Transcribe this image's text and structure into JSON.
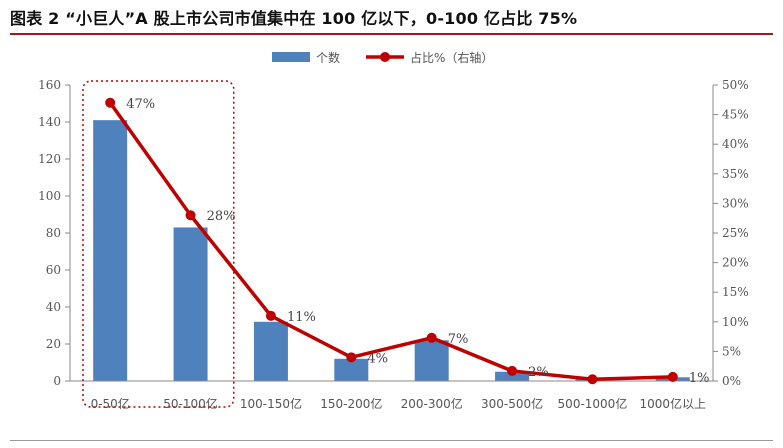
{
  "title": "图表 2 “小巨人”A 股上市公司市值集中在 100 亿以下，0-100 亿占比 75%",
  "chart_data": {
    "type": "bar",
    "categories": [
      "0-50亿",
      "50-100亿",
      "100-150亿",
      "150-200亿",
      "200-300亿",
      "300-500亿",
      "500-1000亿",
      "1000亿以上"
    ],
    "series": [
      {
        "name": "个数",
        "type": "bar",
        "axis": "left",
        "color": "#4F81BD",
        "values": [
          141,
          83,
          32,
          12,
          22,
          5,
          1,
          2
        ]
      },
      {
        "name": "占比%（右轴）",
        "type": "line",
        "axis": "right",
        "color": "#C00000",
        "values": [
          0.47,
          0.28,
          0.11,
          0.04,
          0.073,
          0.017,
          0.003,
          0.007
        ],
        "data_labels": [
          "47%",
          "28%",
          "11%",
          "4%",
          "7%",
          "2%",
          "",
          "1%"
        ]
      }
    ],
    "y_left": {
      "min": 0,
      "max": 160,
      "ticks": [
        0,
        20,
        40,
        60,
        80,
        100,
        120,
        140,
        160
      ]
    },
    "y_right": {
      "min": 0,
      "max": 0.5,
      "ticks": [
        "0%",
        "5%",
        "10%",
        "15%",
        "20%",
        "25%",
        "30%",
        "35%",
        "40%",
        "45%",
        "50%"
      ]
    },
    "legend_position": "top-center",
    "grid": false,
    "highlight_box": {
      "categories": [
        "0-50亿",
        "50-100亿"
      ],
      "color": "#C00000",
      "style": "dotted"
    }
  }
}
